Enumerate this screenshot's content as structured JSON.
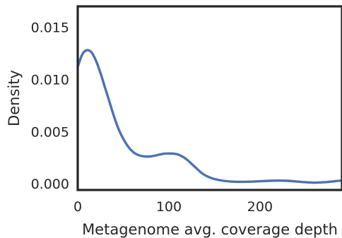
{
  "chart_data": {
    "type": "line",
    "xlabel": "Metagenome avg. coverage depth",
    "ylabel": "Density",
    "xlim": [
      0,
      290
    ],
    "ylim": [
      -0.0006,
      0.017
    ],
    "x_ticks": [
      0,
      100,
      200
    ],
    "x_tick_labels": [
      "0",
      "100",
      "200"
    ],
    "y_ticks": [
      0.0,
      0.005,
      0.01,
      0.015
    ],
    "y_tick_labels": [
      "0.000",
      "0.005",
      "0.010",
      "0.015"
    ],
    "grid": false,
    "series": [
      {
        "color": "#4c72b0",
        "x": [
          0,
          5,
          10,
          15,
          20,
          25,
          30,
          35,
          40,
          45,
          50,
          55,
          60,
          65,
          70,
          75,
          80,
          85,
          90,
          95,
          100,
          105,
          110,
          115,
          120,
          125,
          130,
          135,
          140,
          145,
          150,
          160,
          170,
          180,
          190,
          200,
          210,
          220,
          230,
          240,
          250,
          260,
          270,
          280,
          290
        ],
        "y": [
          0.0112,
          0.0124,
          0.0128,
          0.0126,
          0.0118,
          0.0106,
          0.0092,
          0.0078,
          0.0064,
          0.0052,
          0.0043,
          0.0036,
          0.0031,
          0.0028,
          0.00266,
          0.0026,
          0.00262,
          0.0027,
          0.0028,
          0.00288,
          0.0029,
          0.00288,
          0.0028,
          0.0026,
          0.0023,
          0.0019,
          0.0015,
          0.0011,
          0.0008,
          0.0006,
          0.00045,
          0.00028,
          0.0002,
          0.00018,
          0.0002,
          0.00024,
          0.00028,
          0.0003,
          0.00028,
          0.00022,
          0.00014,
          0.0001,
          0.00014,
          0.00022,
          0.00032
        ]
      }
    ]
  }
}
